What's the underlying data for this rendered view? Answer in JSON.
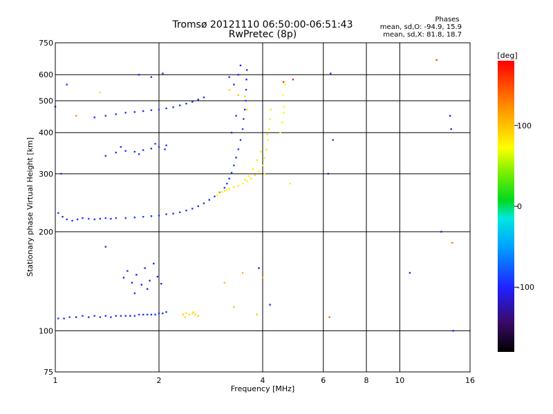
{
  "chart_data": {
    "type": "scatter",
    "title": "Tromsø 20121110 06:50:00-06:51:43",
    "subtitle": "RwPretec (8p)",
    "xlabel": "Frequency [MHz]",
    "ylabel": "Stationary phase Virtual Height [km]",
    "x_scale": "log",
    "y_scale": "log",
    "xlim": [
      1,
      16
    ],
    "ylim": [
      75,
      750
    ],
    "x_ticks": [
      "1",
      "2",
      "4",
      "6",
      "8",
      "10",
      "16"
    ],
    "x_tick_values": [
      1,
      2,
      4,
      6,
      8,
      10,
      16
    ],
    "y_ticks": [
      "75",
      "100",
      "200",
      "300",
      "400",
      "500",
      "600",
      "750"
    ],
    "y_tick_values": [
      75,
      100,
      200,
      300,
      400,
      500,
      600,
      750
    ],
    "grid": true,
    "colorbar": {
      "label": "[deg]",
      "range": [
        -180,
        180
      ],
      "ticks": [
        "100",
        "0",
        "-100"
      ],
      "tick_values": [
        100,
        0,
        -100
      ]
    },
    "stats": {
      "heading": "Phases",
      "line1": "mean, sd,O:  -94.9,  15.9",
      "line2": "mean, sd,X:   81.8,  18.7"
    },
    "series": [
      {
        "points": [
          [
            1.02,
            109,
            -92
          ],
          [
            1.06,
            109,
            -95
          ],
          [
            1.1,
            110,
            -90
          ],
          [
            1.15,
            110,
            -98
          ],
          [
            1.2,
            111,
            -93
          ],
          [
            1.25,
            110,
            -96
          ],
          [
            1.3,
            111,
            -91
          ],
          [
            1.35,
            110,
            -94
          ],
          [
            1.4,
            111,
            -97
          ],
          [
            1.45,
            110,
            -92
          ],
          [
            1.5,
            111,
            -95
          ],
          [
            1.55,
            111,
            -90
          ],
          [
            1.6,
            111,
            -93
          ],
          [
            1.65,
            111,
            -96
          ],
          [
            1.7,
            111,
            -91
          ],
          [
            1.75,
            112,
            -94
          ],
          [
            1.8,
            112,
            -97
          ],
          [
            1.85,
            112,
            -92
          ],
          [
            1.9,
            112,
            -95
          ],
          [
            1.95,
            112,
            -90
          ],
          [
            2.0,
            113,
            -93
          ],
          [
            2.05,
            113,
            -96
          ],
          [
            2.1,
            114,
            -92
          ],
          [
            1.58,
            145,
            -102
          ],
          [
            1.62,
            152,
            -98
          ],
          [
            1.67,
            140,
            -105
          ],
          [
            1.72,
            148,
            -100
          ],
          [
            1.78,
            138,
            -103
          ],
          [
            1.82,
            155,
            -97
          ],
          [
            1.88,
            142,
            -101
          ],
          [
            1.93,
            160,
            -99
          ],
          [
            1.98,
            146,
            -104
          ],
          [
            2.03,
            139,
            -100
          ],
          [
            1.7,
            130,
            -96
          ],
          [
            1.85,
            134,
            -102
          ],
          [
            1.02,
            228,
            -92
          ],
          [
            1.05,
            222,
            -96
          ],
          [
            1.08,
            218,
            -90
          ],
          [
            1.12,
            216,
            -95
          ],
          [
            1.16,
            218,
            -93
          ],
          [
            1.2,
            220,
            -97
          ],
          [
            1.25,
            219,
            -91
          ],
          [
            1.3,
            218,
            -94
          ],
          [
            1.35,
            219,
            -98
          ],
          [
            1.4,
            220,
            -92
          ],
          [
            1.45,
            219,
            -95
          ],
          [
            1.5,
            220,
            -90
          ],
          [
            1.6,
            220,
            -93
          ],
          [
            1.7,
            221,
            -96
          ],
          [
            1.8,
            222,
            -91
          ],
          [
            1.9,
            223,
            -94
          ],
          [
            2.0,
            224,
            -97
          ],
          [
            2.1,
            226,
            -92
          ],
          [
            2.2,
            227,
            -95
          ],
          [
            2.3,
            229,
            -90
          ],
          [
            2.4,
            232,
            -93
          ],
          [
            2.5,
            235,
            -96
          ],
          [
            2.6,
            239,
            -91
          ],
          [
            2.7,
            244,
            -94
          ],
          [
            2.8,
            250,
            -97
          ],
          [
            2.9,
            256,
            -92
          ],
          [
            3.0,
            263,
            -95
          ],
          [
            3.1,
            272,
            -90
          ],
          [
            3.15,
            280,
            -93
          ],
          [
            3.2,
            290,
            -96
          ],
          [
            3.25,
            302,
            -91
          ],
          [
            3.3,
            318,
            -94
          ],
          [
            3.35,
            336,
            -97
          ],
          [
            3.4,
            356,
            -92
          ],
          [
            3.45,
            380,
            -95
          ],
          [
            3.5,
            410,
            -90
          ],
          [
            3.52,
            440,
            -93
          ],
          [
            3.55,
            470,
            -96
          ],
          [
            3.57,
            500,
            -91
          ],
          [
            3.58,
            540,
            -94
          ],
          [
            3.59,
            580,
            -97
          ],
          [
            3.6,
            620,
            -92
          ],
          [
            3.3,
            560,
            -98
          ],
          [
            3.4,
            600,
            -95
          ],
          [
            3.45,
            640,
            -100
          ],
          [
            3.2,
            590,
            -96
          ],
          [
            3.35,
            450,
            -93
          ],
          [
            3.25,
            400,
            -99
          ],
          [
            1.4,
            340,
            -96
          ],
          [
            1.5,
            348,
            -92
          ],
          [
            1.6,
            352,
            -98
          ],
          [
            1.7,
            350,
            -95
          ],
          [
            1.8,
            354,
            -93
          ],
          [
            1.9,
            358,
            -97
          ],
          [
            2.0,
            362,
            -94
          ],
          [
            2.1,
            366,
            -91
          ],
          [
            1.55,
            362,
            -99
          ],
          [
            1.75,
            344,
            -96
          ],
          [
            1.95,
            370,
            -90
          ],
          [
            2.08,
            356,
            -95
          ],
          [
            1.3,
            445,
            -97
          ],
          [
            1.4,
            450,
            -93
          ],
          [
            1.5,
            455,
            -96
          ],
          [
            1.6,
            460,
            -92
          ],
          [
            1.7,
            462,
            -95
          ],
          [
            1.8,
            465,
            -98
          ],
          [
            1.9,
            468,
            -94
          ],
          [
            2.0,
            470,
            -91
          ],
          [
            2.1,
            474,
            -96
          ],
          [
            2.2,
            478,
            -93
          ],
          [
            2.3,
            484,
            -97
          ],
          [
            2.4,
            490,
            -95
          ],
          [
            2.5,
            496,
            -92
          ],
          [
            2.6,
            504,
            -96
          ],
          [
            2.7,
            512,
            -94
          ],
          [
            1.75,
            600,
            -95
          ],
          [
            1.9,
            590,
            -98
          ],
          [
            2.05,
            605,
            -93
          ],
          [
            1.08,
            560,
            -96
          ],
          [
            1.0,
            480,
            -92
          ],
          [
            1.04,
            300,
            -97
          ],
          [
            1.4,
            180,
            -105
          ],
          [
            3.9,
            155,
            -110
          ],
          [
            4.2,
            120,
            -100
          ],
          [
            6.3,
            605,
            -98
          ],
          [
            6.4,
            380,
            -95
          ],
          [
            14.3,
            100,
            -105
          ],
          [
            6.2,
            300,
            -110
          ],
          [
            13.2,
            200,
            -115
          ],
          [
            14.0,
            450,
            -104
          ],
          [
            14.1,
            410,
            -110
          ],
          [
            10.7,
            150,
            -108
          ]
        ]
      },
      {
        "points": [
          [
            2.95,
            258,
            80
          ],
          [
            3.0,
            262,
            82
          ],
          [
            3.05,
            264,
            78
          ],
          [
            3.1,
            266,
            84
          ],
          [
            3.15,
            268,
            79
          ],
          [
            3.2,
            270,
            83
          ],
          [
            3.3,
            273,
            81
          ],
          [
            3.4,
            276,
            86
          ],
          [
            3.5,
            280,
            77
          ],
          [
            3.6,
            285,
            82
          ],
          [
            3.7,
            290,
            80
          ],
          [
            3.8,
            297,
            85
          ],
          [
            3.9,
            305,
            79
          ],
          [
            4.0,
            318,
            83
          ],
          [
            4.05,
            335,
            81
          ],
          [
            4.1,
            355,
            84
          ],
          [
            4.15,
            380,
            78
          ],
          [
            4.18,
            410,
            82
          ],
          [
            4.2,
            440,
            80
          ],
          [
            4.22,
            470,
            85
          ],
          [
            3.85,
            330,
            79
          ],
          [
            3.95,
            350,
            83
          ],
          [
            3.75,
            310,
            81
          ],
          [
            4.12,
            395,
            84
          ],
          [
            4.05,
            300,
            78
          ],
          [
            3.65,
            295,
            82
          ],
          [
            3.55,
            288,
            86
          ],
          [
            4.5,
            400,
            70
          ],
          [
            4.55,
            430,
            75
          ],
          [
            4.6,
            460,
            68
          ],
          [
            4.58,
            520,
            72
          ],
          [
            4.65,
            560,
            70
          ],
          [
            4.62,
            480,
            74
          ],
          [
            3.2,
            540,
            90
          ],
          [
            3.4,
            520,
            95
          ],
          [
            3.6,
            470,
            88
          ],
          [
            3.55,
            515,
            92
          ],
          [
            2.35,
            112,
            95
          ],
          [
            2.4,
            113,
            88
          ],
          [
            2.45,
            112,
            92
          ],
          [
            2.5,
            113,
            85
          ],
          [
            2.55,
            112,
            90
          ],
          [
            2.6,
            111,
            94
          ],
          [
            2.38,
            110,
            86
          ],
          [
            2.52,
            114,
            91
          ],
          [
            3.1,
            140,
            100
          ],
          [
            3.5,
            150,
            105
          ],
          [
            4.0,
            145,
            110
          ],
          [
            3.3,
            118,
            95
          ],
          [
            3.85,
            112,
            98
          ],
          [
            1.15,
            450,
            120
          ],
          [
            1.35,
            530,
            60
          ],
          [
            4.6,
            570,
            160
          ],
          [
            6.25,
            110,
            140
          ],
          [
            12.8,
            665,
            150
          ],
          [
            4.8,
            280,
            65
          ],
          [
            14.2,
            185,
            130
          ],
          [
            4.9,
            580,
            170
          ]
        ]
      }
    ]
  }
}
